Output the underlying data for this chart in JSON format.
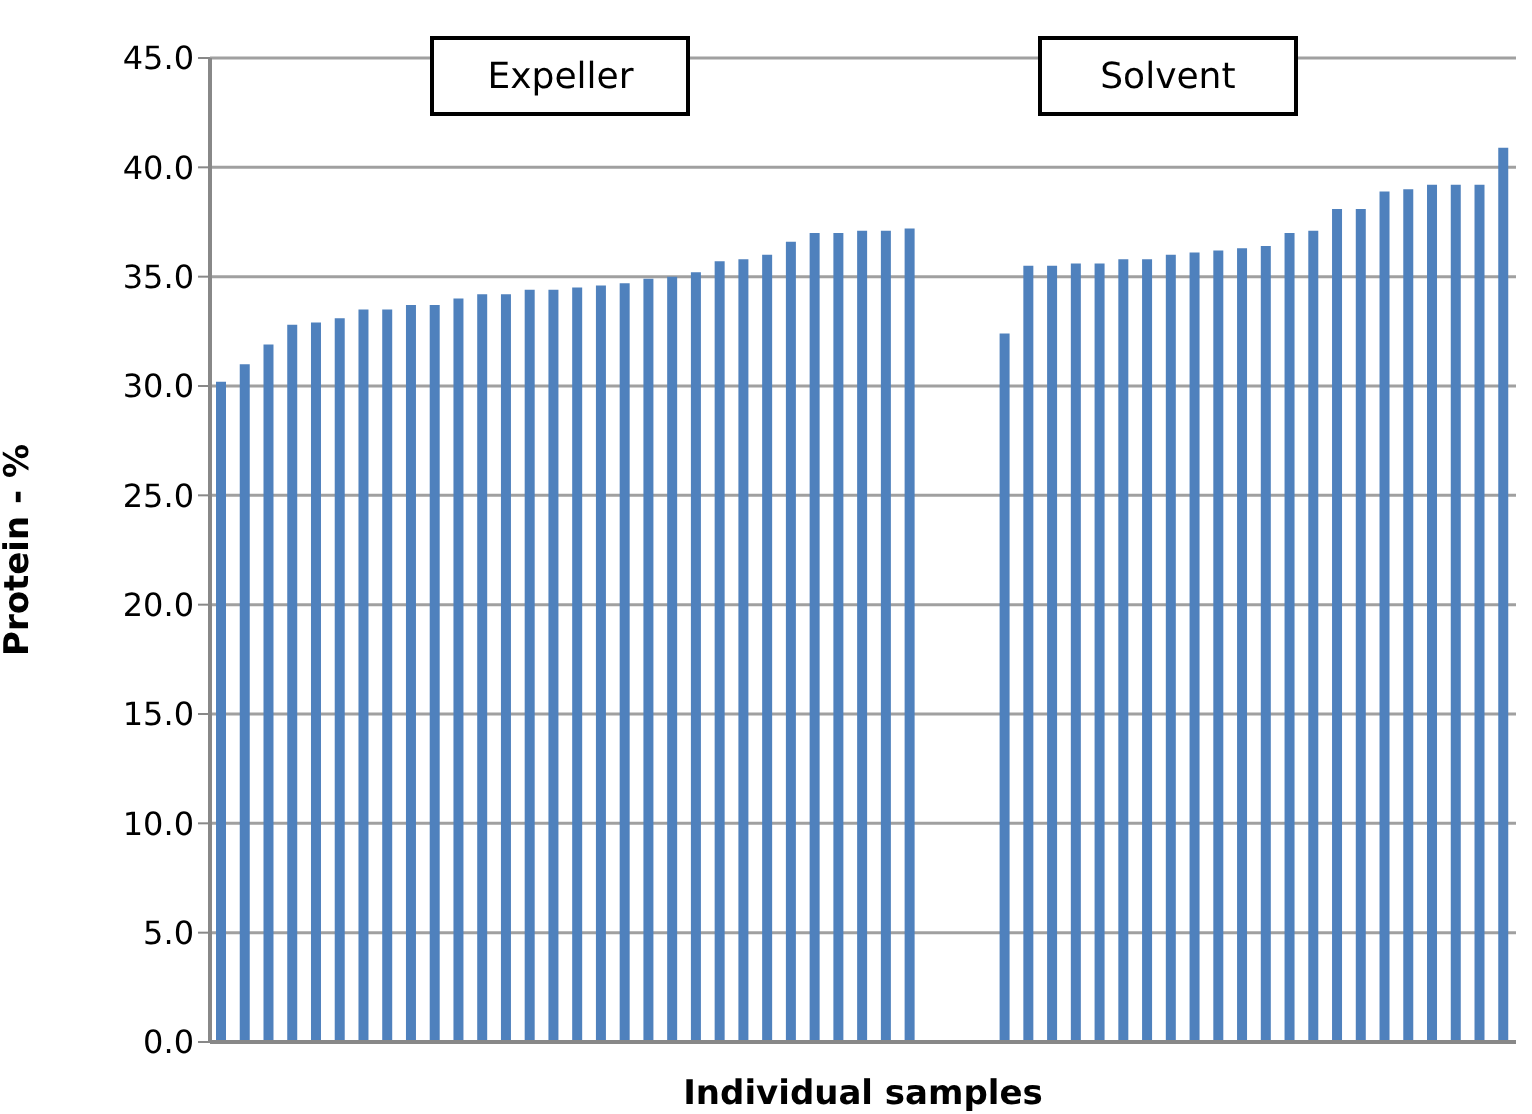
{
  "chart_data": {
    "type": "bar",
    "xlabel": "Individual samples",
    "ylabel": "Protein - %",
    "annotations": [
      "Expeller",
      "Solvent"
    ],
    "categories": [
      null,
      null,
      null,
      null,
      null,
      null,
      null,
      null,
      null,
      null,
      null,
      null,
      null,
      null,
      null,
      null,
      null,
      null,
      null,
      null,
      null,
      null,
      null,
      null,
      null,
      null,
      null,
      null,
      null,
      null,
      null,
      null,
      null,
      null,
      null,
      null,
      null,
      null,
      null,
      null,
      null,
      null,
      null,
      null,
      null,
      null,
      null,
      null,
      null,
      null,
      null,
      null,
      null,
      null,
      null
    ],
    "series": [
      {
        "color": "#4f81bd",
        "values": [
          30.2,
          31.0,
          31.9,
          32.8,
          32.9,
          33.1,
          33.5,
          33.5,
          33.7,
          33.7,
          34.0,
          34.2,
          34.2,
          34.4,
          34.4,
          34.5,
          34.6,
          34.7,
          34.9,
          35.0,
          35.2,
          35.7,
          35.8,
          36.0,
          36.6,
          37.0,
          37.0,
          37.1,
          37.1,
          37.2,
          null,
          null,
          null,
          32.4,
          35.5,
          35.5,
          35.6,
          35.6,
          35.8,
          35.8,
          36.0,
          36.1,
          36.2,
          36.3,
          36.4,
          37.0,
          37.1,
          38.1,
          38.1,
          38.9,
          39.0,
          39.2,
          39.2,
          39.2,
          40.9
        ]
      }
    ],
    "ylim": [
      0,
      45
    ],
    "yticks": [
      {
        "value": 0,
        "label": "0.0"
      },
      {
        "value": 5,
        "label": "5.0"
      },
      {
        "value": 10,
        "label": "10.0"
      },
      {
        "value": 15,
        "label": "15.0"
      },
      {
        "value": 20,
        "label": "20.0"
      },
      {
        "value": 25,
        "label": "25.0"
      },
      {
        "value": 30,
        "label": "30.0"
      },
      {
        "value": 35,
        "label": "35.0"
      },
      {
        "value": 40,
        "label": "40.0"
      },
      {
        "value": 45,
        "label": "45.0"
      }
    ],
    "grid": "y"
  }
}
